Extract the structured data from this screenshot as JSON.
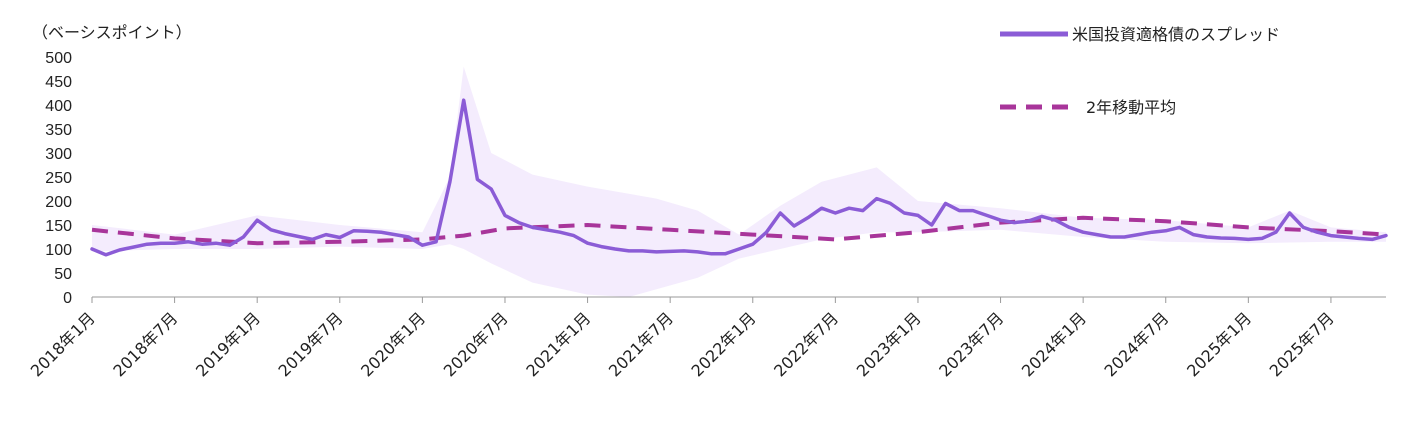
{
  "chart_data": {
    "type": "line",
    "ylabel": "（ベーシスポイント）",
    "ylim": [
      0,
      500
    ],
    "yticks": [
      500,
      450,
      400,
      350,
      300,
      250,
      200,
      150,
      100,
      50,
      0
    ],
    "xticks": [
      "2018年1月",
      "2018年7月",
      "2019年1月",
      "2019年7月",
      "2020年1月",
      "2020年7月",
      "2021年1月",
      "2021年7月",
      "2022年1月",
      "2022年7月",
      "2023年1月",
      "2023年7月",
      "2024年1月",
      "2024年7月",
      "2025年1月",
      "2025年7月"
    ],
    "xrange": [
      "2018-01",
      "2025-11"
    ],
    "legend_placement": "top-right",
    "grid": false,
    "colors": {
      "spread": "#8B5CD6",
      "ma": "#A8359A",
      "band": "#F4ECFD"
    },
    "series": [
      {
        "name": "米国投資適格債のスプレッド",
        "style": "solid",
        "points": [
          [
            "2018-01",
            100
          ],
          [
            "2018-02",
            88
          ],
          [
            "2018-03",
            98
          ],
          [
            "2018-04",
            104
          ],
          [
            "2018-05",
            110
          ],
          [
            "2018-06",
            112
          ],
          [
            "2018-07",
            112
          ],
          [
            "2018-08",
            115
          ],
          [
            "2018-09",
            110
          ],
          [
            "2018-10",
            112
          ],
          [
            "2018-11",
            108
          ],
          [
            "2018-12",
            125
          ],
          [
            "2019-01",
            160
          ],
          [
            "2019-02",
            140
          ],
          [
            "2019-03",
            132
          ],
          [
            "2019-04",
            126
          ],
          [
            "2019-05",
            120
          ],
          [
            "2019-06",
            130
          ],
          [
            "2019-07",
            124
          ],
          [
            "2019-08",
            138
          ],
          [
            "2019-09",
            137
          ],
          [
            "2019-10",
            135
          ],
          [
            "2019-11",
            130
          ],
          [
            "2019-12",
            125
          ],
          [
            "2020-01",
            108
          ],
          [
            "2020-02",
            115
          ],
          [
            "2020-03",
            240
          ],
          [
            "2020-04",
            410
          ],
          [
            "2020-05",
            245
          ],
          [
            "2020-06",
            225
          ],
          [
            "2020-07",
            170
          ],
          [
            "2020-08",
            155
          ],
          [
            "2020-09",
            145
          ],
          [
            "2020-10",
            140
          ],
          [
            "2020-11",
            135
          ],
          [
            "2020-12",
            128
          ],
          [
            "2021-01",
            112
          ],
          [
            "2021-02",
            105
          ],
          [
            "2021-03",
            100
          ],
          [
            "2021-04",
            96
          ],
          [
            "2021-05",
            96
          ],
          [
            "2021-06",
            94
          ],
          [
            "2021-07",
            95
          ],
          [
            "2021-08",
            96
          ],
          [
            "2021-09",
            94
          ],
          [
            "2021-10",
            90
          ],
          [
            "2021-11",
            90
          ],
          [
            "2021-12",
            100
          ],
          [
            "2022-01",
            110
          ],
          [
            "2022-02",
            135
          ],
          [
            "2022-03",
            175
          ],
          [
            "2022-04",
            148
          ],
          [
            "2022-05",
            165
          ],
          [
            "2022-06",
            185
          ],
          [
            "2022-07",
            175
          ],
          [
            "2022-08",
            185
          ],
          [
            "2022-09",
            180
          ],
          [
            "2022-10",
            205
          ],
          [
            "2022-11",
            195
          ],
          [
            "2022-12",
            175
          ],
          [
            "2023-01",
            170
          ],
          [
            "2023-02",
            150
          ],
          [
            "2023-03",
            195
          ],
          [
            "2023-04",
            180
          ],
          [
            "2023-05",
            180
          ],
          [
            "2023-06",
            170
          ],
          [
            "2023-07",
            160
          ],
          [
            "2023-08",
            155
          ],
          [
            "2023-09",
            158
          ],
          [
            "2023-10",
            168
          ],
          [
            "2023-11",
            160
          ],
          [
            "2023-12",
            145
          ],
          [
            "2024-01",
            135
          ],
          [
            "2024-02",
            130
          ],
          [
            "2024-03",
            125
          ],
          [
            "2024-04",
            125
          ],
          [
            "2024-05",
            130
          ],
          [
            "2024-06",
            135
          ],
          [
            "2024-07",
            138
          ],
          [
            "2024-08",
            145
          ],
          [
            "2024-09",
            130
          ],
          [
            "2024-10",
            125
          ],
          [
            "2024-11",
            123
          ],
          [
            "2024-12",
            122
          ],
          [
            "2025-01",
            120
          ],
          [
            "2025-02",
            122
          ],
          [
            "2025-03",
            135
          ],
          [
            "2025-04",
            175
          ],
          [
            "2025-05",
            145
          ],
          [
            "2025-06",
            135
          ],
          [
            "2025-07",
            128
          ],
          [
            "2025-08",
            125
          ],
          [
            "2025-09",
            122
          ],
          [
            "2025-10",
            120
          ],
          [
            "2025-11",
            128
          ]
        ]
      },
      {
        "name": "2年移動平均",
        "style": "dashed",
        "points": [
          [
            "2018-01",
            140
          ],
          [
            "2018-07",
            122
          ],
          [
            "2019-01",
            112
          ],
          [
            "2019-07",
            115
          ],
          [
            "2020-01",
            120
          ],
          [
            "2020-04",
            128
          ],
          [
            "2020-07",
            143
          ],
          [
            "2021-01",
            150
          ],
          [
            "2021-07",
            140
          ],
          [
            "2022-01",
            130
          ],
          [
            "2022-07",
            120
          ],
          [
            "2023-01",
            135
          ],
          [
            "2023-07",
            155
          ],
          [
            "2024-01",
            165
          ],
          [
            "2024-07",
            158
          ],
          [
            "2025-01",
            145
          ],
          [
            "2025-07",
            137
          ],
          [
            "2025-11",
            130
          ]
        ]
      }
    ],
    "band": {
      "upper": [
        [
          "2018-01",
          150
        ],
        [
          "2018-07",
          130
        ],
        [
          "2019-01",
          170
        ],
        [
          "2019-07",
          150
        ],
        [
          "2020-01",
          135
        ],
        [
          "2020-03",
          250
        ],
        [
          "2020-04",
          480
        ],
        [
          "2020-06",
          300
        ],
        [
          "2020-09",
          255
        ],
        [
          "2021-01",
          230
        ],
        [
          "2021-06",
          205
        ],
        [
          "2021-09",
          180
        ],
        [
          "2021-12",
          130
        ],
        [
          "2022-03",
          190
        ],
        [
          "2022-06",
          240
        ],
        [
          "2022-10",
          270
        ],
        [
          "2023-01",
          200
        ],
        [
          "2023-07",
          185
        ],
        [
          "2024-01",
          165
        ],
        [
          "2024-07",
          160
        ],
        [
          "2025-01",
          145
        ],
        [
          "2025-04",
          180
        ],
        [
          "2025-07",
          145
        ],
        [
          "2025-11",
          135
        ]
      ],
      "lower": [
        [
          "2018-01",
          95
        ],
        [
          "2018-07",
          100
        ],
        [
          "2019-01",
          100
        ],
        [
          "2019-07",
          105
        ],
        [
          "2020-01",
          100
        ],
        [
          "2020-03",
          110
        ],
        [
          "2020-04",
          100
        ],
        [
          "2020-06",
          70
        ],
        [
          "2020-09",
          30
        ],
        [
          "2021-01",
          5
        ],
        [
          "2021-04",
          0
        ],
        [
          "2021-09",
          40
        ],
        [
          "2021-12",
          80
        ],
        [
          "2022-03",
          100
        ],
        [
          "2022-06",
          120
        ],
        [
          "2022-10",
          135
        ],
        [
          "2023-01",
          135
        ],
        [
          "2023-07",
          140
        ],
        [
          "2024-01",
          125
        ],
        [
          "2024-07",
          115
        ],
        [
          "2025-01",
          112
        ],
        [
          "2025-07",
          115
        ],
        [
          "2025-11",
          115
        ]
      ]
    }
  }
}
